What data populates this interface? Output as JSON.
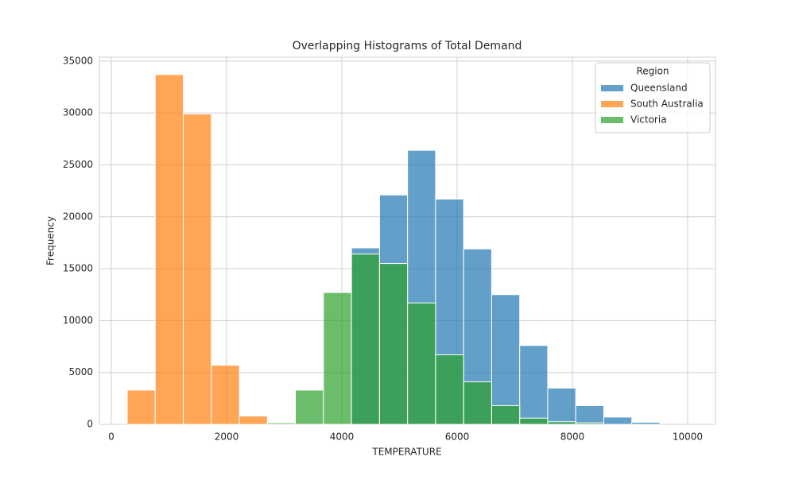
{
  "chart_data": {
    "type": "histogram",
    "title": "Overlapping Histograms of Total Demand",
    "x_label": "TEMPERATURE",
    "y_label": "Frequency",
    "bins": [
      276,
      762,
      1249,
      1735,
      2222,
      2708,
      3194,
      3681,
      4167,
      4654,
      5140,
      5626,
      6113,
      6599,
      7086,
      7572,
      8058,
      8545,
      9031,
      9517
    ],
    "series": [
      {
        "name": "Queensland",
        "color": "#1f77b4",
        "values": [
          0,
          0,
          0,
          0,
          0,
          0,
          0,
          0,
          17000,
          22100,
          26400,
          21700,
          16900,
          12500,
          7600,
          3500,
          1800,
          700,
          200
        ]
      },
      {
        "name": "South Australia",
        "color": "#ff7f0e",
        "values": [
          3300,
          33700,
          29900,
          5700,
          800,
          0,
          0,
          0,
          0,
          0,
          0,
          0,
          0,
          0,
          0,
          0,
          0,
          0,
          0
        ]
      },
      {
        "name": "Victoria",
        "color": "#2ca02c",
        "values": [
          0,
          0,
          0,
          0,
          0,
          150,
          3300,
          12700,
          16400,
          15500,
          11700,
          6700,
          4100,
          1800,
          600,
          250,
          150,
          0,
          0
        ]
      }
    ],
    "legend_title": "Region",
    "legend_position": "upper right",
    "xlim": [
      -207,
      10483
    ],
    "ylim": [
      0,
      35370
    ],
    "xticks": [
      0,
      2000,
      4000,
      6000,
      8000,
      10000
    ],
    "yticks": [
      0,
      5000,
      10000,
      15000,
      20000,
      25000,
      30000,
      35000
    ],
    "grid": true
  }
}
